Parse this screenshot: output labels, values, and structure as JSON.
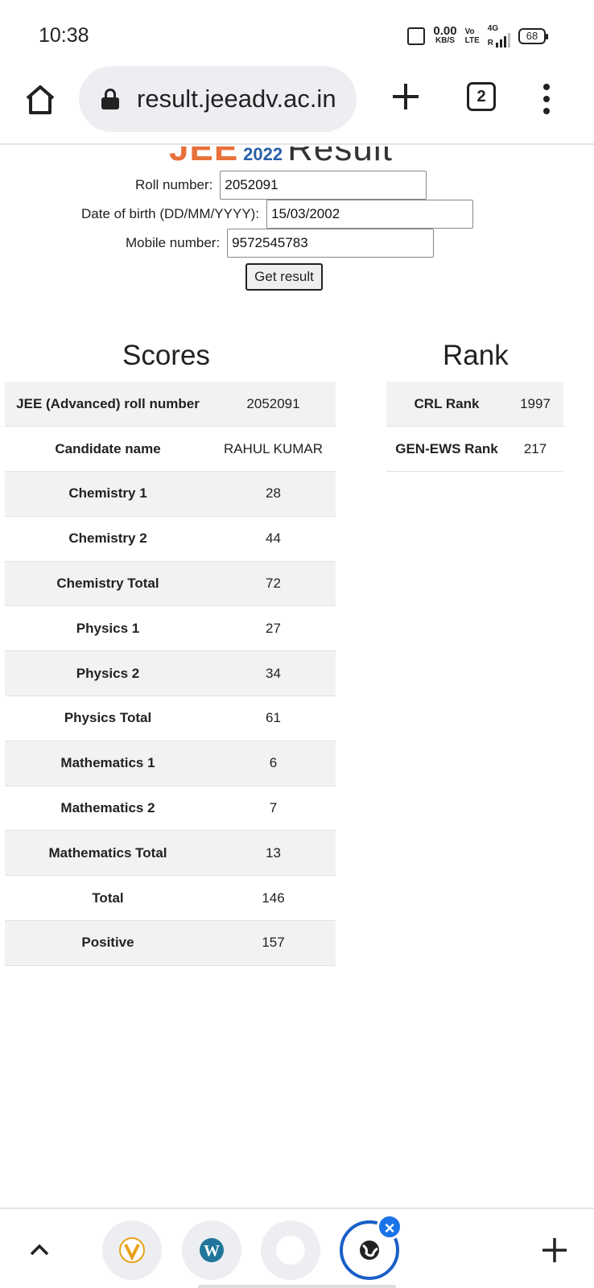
{
  "status": {
    "time": "10:38",
    "speed_value": "0.00",
    "speed_unit": "KB/S",
    "volte_top": "Vo",
    "volte_bottom": "LTE",
    "network": "4G",
    "roaming": "R",
    "battery": "68"
  },
  "browser": {
    "url": "result.jeeadv.ac.in",
    "tab_count": "2"
  },
  "page": {
    "header_jee": "JEE",
    "header_year": "2022",
    "header_result": "Result",
    "form": {
      "roll_label": "Roll number:",
      "roll_value": "2052091",
      "dob_label": "Date of birth (DD/MM/YYYY):",
      "dob_value": "15/03/2002",
      "mobile_label": "Mobile number:",
      "mobile_value": "9572545783",
      "submit_label": "Get result"
    },
    "scores_title": "Scores",
    "rank_title": "Rank",
    "scores": [
      {
        "label": "JEE (Advanced) roll number",
        "value": "2052091"
      },
      {
        "label": "Candidate name",
        "value": "RAHUL KUMAR"
      },
      {
        "label": "Chemistry 1",
        "value": "28"
      },
      {
        "label": "Chemistry 2",
        "value": "44"
      },
      {
        "label": "Chemistry Total",
        "value": "72"
      },
      {
        "label": "Physics 1",
        "value": "27"
      },
      {
        "label": "Physics 2",
        "value": "34"
      },
      {
        "label": "Physics Total",
        "value": "61"
      },
      {
        "label": "Mathematics 1",
        "value": "6"
      },
      {
        "label": "Mathematics 2",
        "value": "7"
      },
      {
        "label": "Mathematics Total",
        "value": "13"
      },
      {
        "label": "Total",
        "value": "146"
      },
      {
        "label": "Positive",
        "value": "157"
      }
    ],
    "ranks": [
      {
        "label": "CRL Rank",
        "value": "1997"
      },
      {
        "label": "GEN-EWS Rank",
        "value": "217"
      }
    ]
  },
  "colors": {
    "jee_orange": "#e8703a",
    "year_blue": "#2a5ea8",
    "active_tab_blue": "#1a5fc8",
    "row_shade": "#f2f2f2"
  },
  "icons": {
    "home": "home-icon",
    "lock": "lock-icon",
    "new_tab": "plus-icon",
    "menu": "more-vert-icon",
    "tab_1": "vedantu-icon",
    "tab_2": "wordpress-icon",
    "tab_3": "blank-tab-icon",
    "tab_4": "globe-icon",
    "close": "close-icon"
  }
}
